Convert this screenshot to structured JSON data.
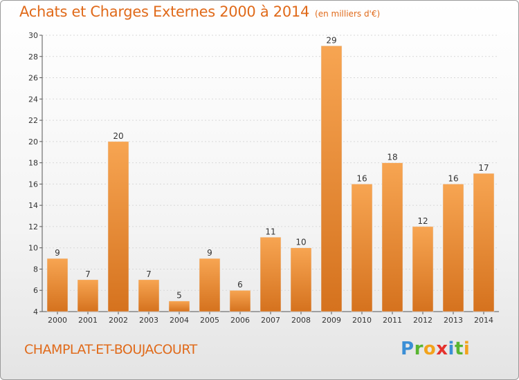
{
  "header": {
    "title": "Achats et Charges Externes 2000 à 2014",
    "unit": "(en milliers d'€)"
  },
  "footer": {
    "commune": "CHAMPLAT-ET-BOUJACOURT",
    "logo": {
      "p": "P",
      "r": "r",
      "o": "o",
      "x": "x",
      "i": "i",
      "t": "t",
      "i2": "i"
    }
  },
  "colors": {
    "accent": "#e06a1a",
    "bar_light": "#f7a552",
    "bar_dark": "#d5721e"
  },
  "chart_data": {
    "type": "bar",
    "title": "Achats et Charges Externes 2000 à 2014",
    "subtitle": "(en milliers d'€)",
    "xlabel": "",
    "ylabel": "",
    "categories": [
      "2000",
      "2001",
      "2002",
      "2003",
      "2004",
      "2005",
      "2006",
      "2007",
      "2008",
      "2009",
      "2010",
      "2011",
      "2012",
      "2013",
      "2014"
    ],
    "values": [
      9,
      7,
      20,
      7,
      5,
      9,
      6,
      11,
      10,
      29,
      16,
      18,
      12,
      16,
      17
    ],
    "ylim": [
      4,
      30
    ],
    "yticks": [
      4,
      6,
      8,
      10,
      12,
      14,
      16,
      18,
      20,
      22,
      24,
      26,
      28,
      30
    ],
    "grid": true,
    "legend": "none"
  }
}
